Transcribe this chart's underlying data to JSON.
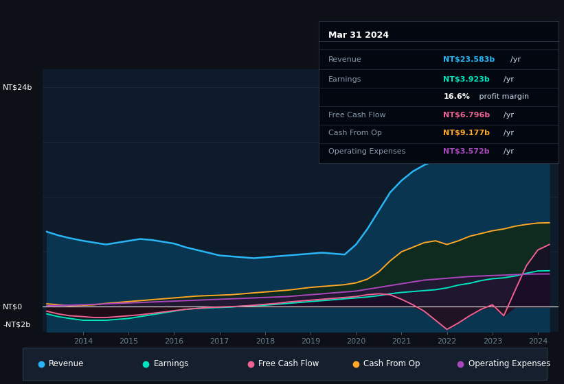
{
  "bg_color": "#0d1117",
  "chart_bg": "#0d1b2a",
  "ylim_min": -2.8,
  "ylim_max": 26.0,
  "xlim_min": 2013.1,
  "xlim_max": 2024.45,
  "years": [
    2013.2,
    2013.45,
    2013.7,
    2014.0,
    2014.25,
    2014.5,
    2014.75,
    2015.0,
    2015.25,
    2015.5,
    2015.75,
    2016.0,
    2016.25,
    2016.5,
    2016.75,
    2017.0,
    2017.25,
    2017.5,
    2017.75,
    2018.0,
    2018.25,
    2018.5,
    2018.75,
    2019.0,
    2019.25,
    2019.5,
    2019.75,
    2020.0,
    2020.25,
    2020.5,
    2020.75,
    2021.0,
    2021.25,
    2021.5,
    2021.75,
    2022.0,
    2022.25,
    2022.5,
    2022.75,
    2023.0,
    2023.25,
    2023.5,
    2023.75,
    2024.0,
    2024.25
  ],
  "revenue": [
    8.2,
    7.8,
    7.5,
    7.2,
    7.0,
    6.8,
    7.0,
    7.2,
    7.4,
    7.3,
    7.1,
    6.9,
    6.5,
    6.2,
    5.9,
    5.6,
    5.5,
    5.4,
    5.3,
    5.4,
    5.5,
    5.6,
    5.7,
    5.8,
    5.9,
    5.8,
    5.7,
    6.8,
    8.5,
    10.5,
    12.5,
    13.8,
    14.8,
    15.5,
    16.0,
    16.8,
    17.5,
    18.2,
    19.0,
    19.5,
    20.0,
    21.0,
    22.5,
    23.5,
    23.583
  ],
  "earnings": [
    -0.8,
    -1.1,
    -1.3,
    -1.5,
    -1.5,
    -1.5,
    -1.4,
    -1.3,
    -1.1,
    -0.9,
    -0.7,
    -0.5,
    -0.3,
    -0.2,
    -0.15,
    -0.1,
    -0.05,
    0.05,
    0.1,
    0.15,
    0.25,
    0.35,
    0.45,
    0.55,
    0.65,
    0.75,
    0.85,
    0.95,
    1.05,
    1.2,
    1.4,
    1.55,
    1.65,
    1.75,
    1.85,
    2.05,
    2.35,
    2.55,
    2.85,
    3.05,
    3.15,
    3.35,
    3.65,
    3.9,
    3.923
  ],
  "free_cash_flow": [
    -0.5,
    -0.8,
    -1.0,
    -1.1,
    -1.2,
    -1.2,
    -1.1,
    -1.0,
    -0.9,
    -0.75,
    -0.6,
    -0.45,
    -0.3,
    -0.2,
    -0.1,
    -0.05,
    0.0,
    0.05,
    0.15,
    0.25,
    0.35,
    0.5,
    0.6,
    0.7,
    0.8,
    0.9,
    1.0,
    1.1,
    1.3,
    1.4,
    1.3,
    0.8,
    0.2,
    -0.5,
    -1.5,
    -2.5,
    -1.8,
    -1.0,
    -0.3,
    0.2,
    -1.0,
    1.8,
    4.5,
    6.2,
    6.796
  ],
  "cash_from_op": [
    0.3,
    0.2,
    0.1,
    0.15,
    0.2,
    0.35,
    0.45,
    0.55,
    0.65,
    0.75,
    0.85,
    0.95,
    1.05,
    1.15,
    1.2,
    1.25,
    1.3,
    1.4,
    1.5,
    1.6,
    1.7,
    1.8,
    1.95,
    2.1,
    2.2,
    2.3,
    2.4,
    2.6,
    3.0,
    3.8,
    5.0,
    6.0,
    6.5,
    7.0,
    7.2,
    6.8,
    7.2,
    7.7,
    8.0,
    8.3,
    8.5,
    8.8,
    9.0,
    9.15,
    9.177
  ],
  "operating_expenses": [
    0.1,
    0.12,
    0.15,
    0.2,
    0.25,
    0.3,
    0.35,
    0.4,
    0.45,
    0.5,
    0.55,
    0.6,
    0.65,
    0.7,
    0.75,
    0.8,
    0.85,
    0.9,
    0.95,
    1.0,
    1.05,
    1.1,
    1.2,
    1.3,
    1.4,
    1.5,
    1.6,
    1.7,
    1.9,
    2.1,
    2.3,
    2.5,
    2.7,
    2.9,
    3.0,
    3.1,
    3.2,
    3.3,
    3.35,
    3.4,
    3.45,
    3.5,
    3.55,
    3.57,
    3.572
  ],
  "revenue_color": "#29b6f6",
  "earnings_color": "#00e5c0",
  "fcf_color": "#f06292",
  "cashop_color": "#ffa726",
  "opex_color": "#ab47bc",
  "revenue_fill_color": "#0a3550",
  "cashop_fill_color": "#1a2a0a",
  "earnings_fill_color": "#003330",
  "opex_fill_color": "#2d1a40",
  "fcf_neg_fill_color": "#3a0a1a",
  "fcf_pos_fill_color": "#1a0a2a",
  "grid_color": "#1e2d3d",
  "zero_line_color": "#e0e0e0",
  "tick_color": "#6a7f8f",
  "legend_bg": "#151f2e",
  "legend_border": "#2a3a4a",
  "tooltip_bg": "#030810",
  "tooltip_border": "#2a3040",
  "info_box": {
    "date": "Mar 31 2024",
    "rows": [
      {
        "label": "Revenue",
        "value": "NT$23.583b",
        "suffix": "/yr",
        "color": "#29b6f6",
        "dimmed": true
      },
      {
        "label": "Earnings",
        "value": "NT$3.923b",
        "suffix": "/yr",
        "color": "#00e5c0",
        "dimmed": true
      },
      {
        "label": "",
        "value": "16.6%",
        "suffix": " profit margin",
        "color": "white",
        "dimmed": false
      },
      {
        "label": "Free Cash Flow",
        "value": "NT$6.796b",
        "suffix": "/yr",
        "color": "#f06292",
        "dimmed": true
      },
      {
        "label": "Cash From Op",
        "value": "NT$9.177b",
        "suffix": "/yr",
        "color": "#ffa726",
        "dimmed": true
      },
      {
        "label": "Operating Expenses",
        "value": "NT$3.572b",
        "suffix": "/yr",
        "color": "#ab47bc",
        "dimmed": true
      }
    ]
  },
  "legend_items": [
    {
      "label": "Revenue",
      "color": "#29b6f6"
    },
    {
      "label": "Earnings",
      "color": "#00e5c0"
    },
    {
      "label": "Free Cash Flow",
      "color": "#f06292"
    },
    {
      "label": "Cash From Op",
      "color": "#ffa726"
    },
    {
      "label": "Operating Expenses",
      "color": "#ab47bc"
    }
  ],
  "xtick_years": [
    2014,
    2015,
    2016,
    2017,
    2018,
    2019,
    2020,
    2021,
    2022,
    2023,
    2024
  ]
}
